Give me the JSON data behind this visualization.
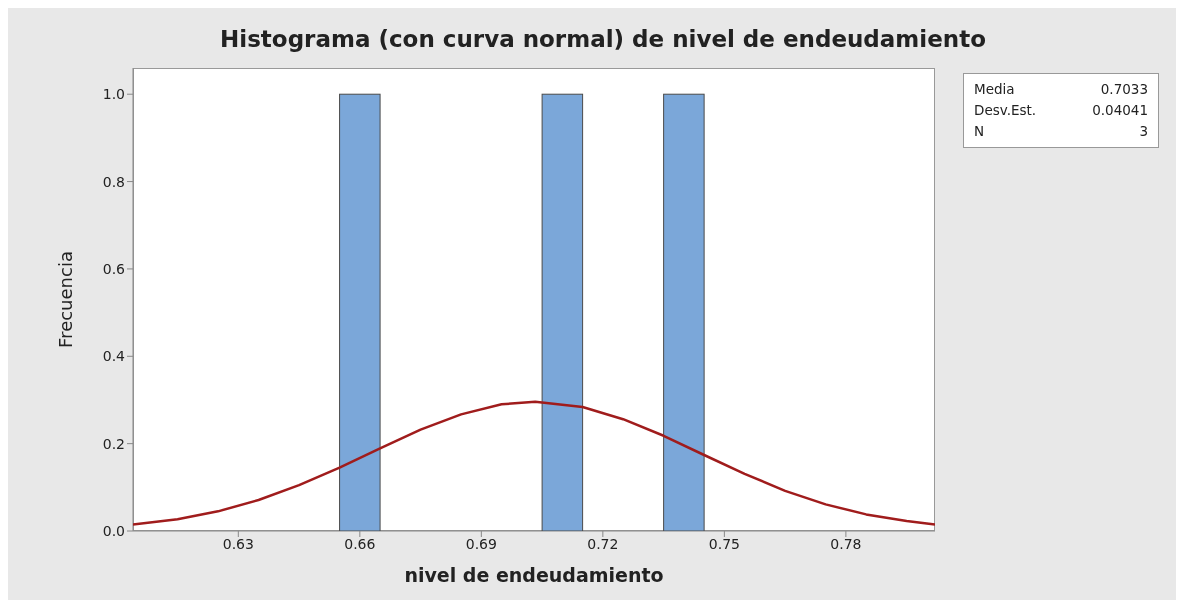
{
  "chart_data": {
    "type": "histogram",
    "title": "Histograma (con curva normal) de nivel de endeudamiento",
    "xlabel": "nivel de endeudamiento",
    "ylabel": "Frecuencia",
    "series": [
      {
        "color": "#7ba7d9",
        "bins": [
          0.655,
          0.665,
          0.675,
          0.685,
          0.695,
          0.705,
          0.715,
          0.725,
          0.735,
          0.745
        ],
        "values": [
          1,
          0,
          0,
          0,
          0,
          1,
          0,
          0,
          1
        ]
      },
      {
        "type": "line",
        "color": "#a01c1c",
        "x": [
          0.604,
          0.615,
          0.625,
          0.635,
          0.645,
          0.655,
          0.665,
          0.675,
          0.685,
          0.695,
          0.7033,
          0.715,
          0.725,
          0.735,
          0.745,
          0.755,
          0.765,
          0.775,
          0.785,
          0.795,
          0.802
        ],
        "values": [
          0.015,
          0.027,
          0.045,
          0.071,
          0.105,
          0.145,
          0.189,
          0.232,
          0.267,
          0.29,
          0.296,
          0.284,
          0.256,
          0.218,
          0.174,
          0.131,
          0.092,
          0.061,
          0.038,
          0.023,
          0.015
        ]
      }
    ],
    "xlim": [
      0.604,
      0.802
    ],
    "xticks": [
      0.63,
      0.66,
      0.69,
      0.72,
      0.75,
      0.78
    ],
    "ylim": [
      0,
      1.06
    ],
    "yticks": [
      {
        "value": 0,
        "label": "0.0"
      },
      {
        "value": 0.2,
        "label": "0.2"
      },
      {
        "value": 0.4,
        "label": "0.4"
      },
      {
        "value": 0.6,
        "label": "0.6"
      },
      {
        "value": 0.8,
        "label": "0.8"
      },
      {
        "value": 1,
        "label": "1.0"
      }
    ],
    "annotations": [
      "Media 0.7033",
      "Desv.Est. 0.04041",
      "N 3"
    ],
    "grid": false,
    "marker": "none"
  }
}
